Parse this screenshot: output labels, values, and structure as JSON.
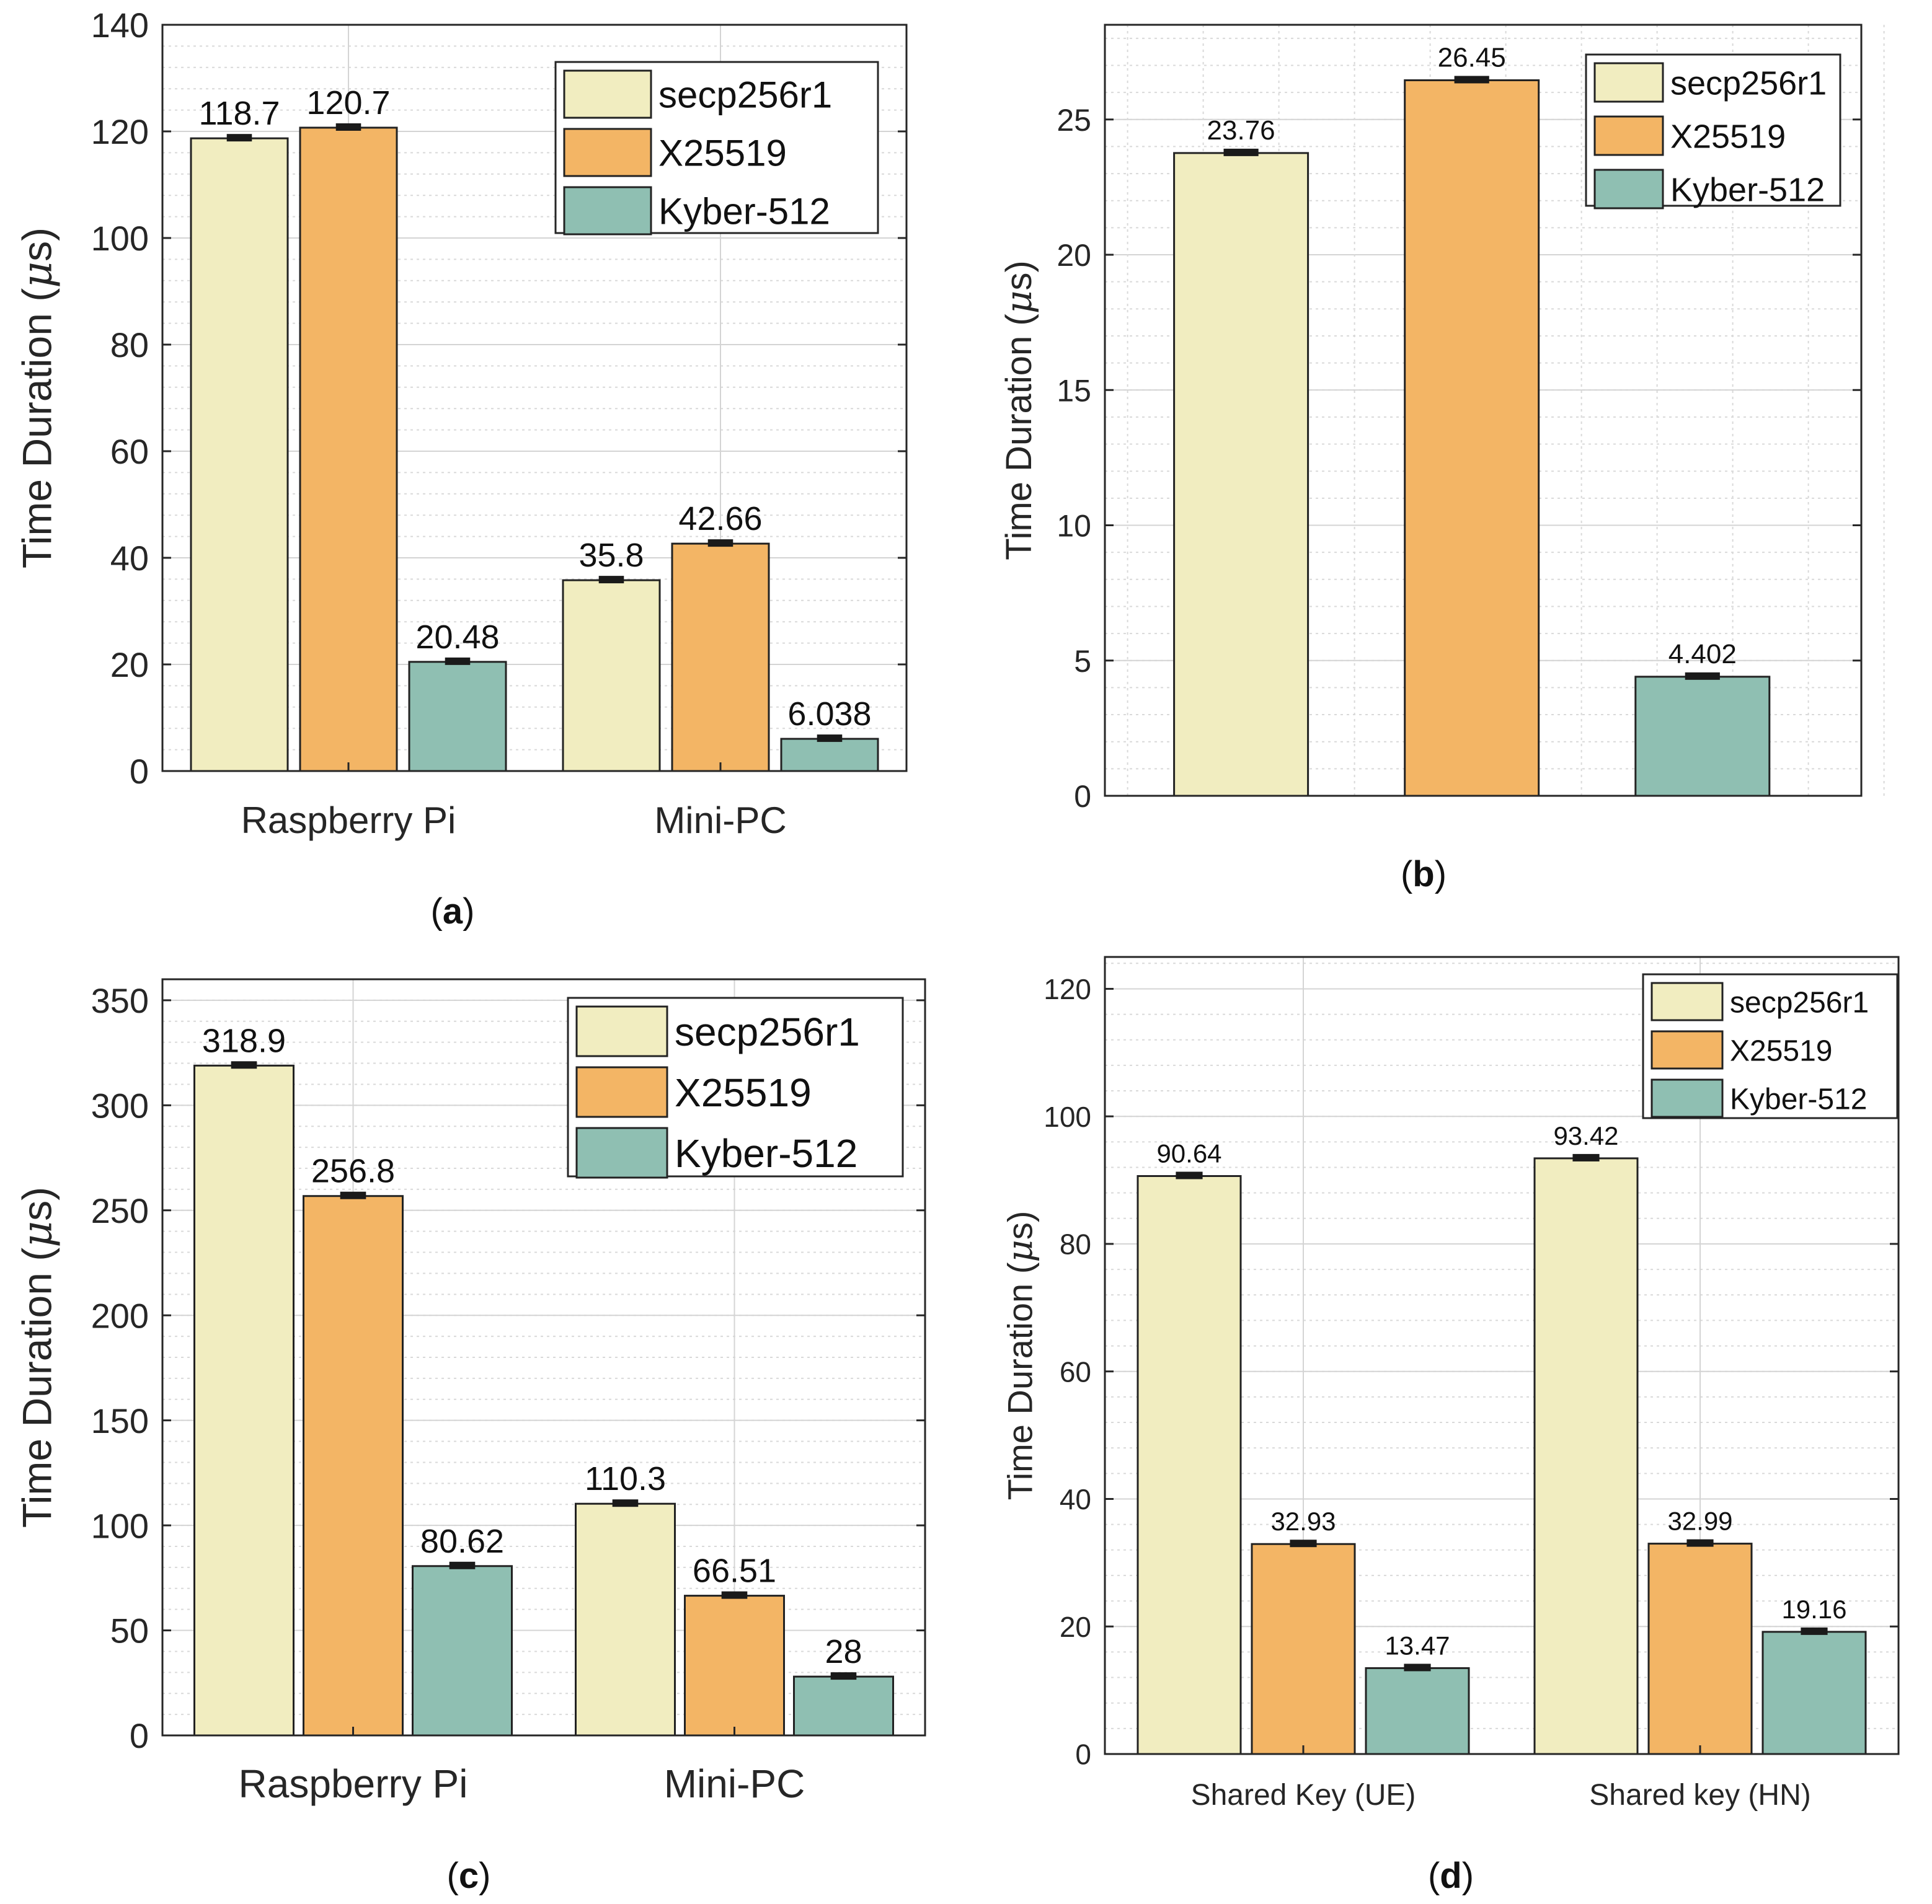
{
  "colors": {
    "secp256r1": "#f1edc0",
    "X25519": "#f3b565",
    "Kyber-512": "#8fbfb2",
    "axis": "#262626",
    "grid_major": "#d4d4d4",
    "grid_minor": "#d9d9d9",
    "errorbar": "#1a1a1a"
  },
  "units": {
    "mu": "μ",
    "s": "s"
  },
  "chart_data": [
    {
      "id": "a",
      "type": "bar",
      "caption": "a",
      "ylabel": "Time Duration (",
      "categories": [
        "Raspberry Pi",
        "Mini-PC"
      ],
      "series": [
        {
          "name": "secp256r1",
          "values": [
            118.7,
            35.8
          ]
        },
        {
          "name": "X25519",
          "values": [
            120.7,
            42.66
          ]
        },
        {
          "name": "Kyber-512",
          "values": [
            20.48,
            6.038
          ]
        }
      ],
      "value_labels": [
        [
          "118.7",
          "35.8"
        ],
        [
          "120.7",
          "42.66"
        ],
        [
          "20.48",
          "6.038"
        ]
      ],
      "ylim": [
        0,
        140
      ],
      "yticks": [
        0,
        20,
        40,
        60,
        80,
        100,
        120,
        140
      ],
      "ytick_labels": [
        "0",
        "20",
        "40",
        "60",
        "80",
        "100",
        "120",
        "140"
      ],
      "legend_location": "top-right",
      "grid": true
    },
    {
      "id": "b",
      "type": "bar",
      "caption": "b",
      "ylabel": "Time Duration (",
      "categories": [
        "",
        "",
        ""
      ],
      "series": [
        {
          "name": "secp256r1",
          "values": [
            23.76,
            null,
            null
          ]
        },
        {
          "name": "X25519",
          "values": [
            null,
            26.45,
            null
          ]
        },
        {
          "name": "Kyber-512",
          "values": [
            null,
            null,
            4.402
          ]
        }
      ],
      "value_labels": [
        [
          "23.76",
          "",
          ""
        ],
        [
          "",
          "26.45",
          ""
        ],
        [
          "",
          "",
          "4.402"
        ]
      ],
      "ylim": [
        0,
        28.5
      ],
      "yticks": [
        0,
        5,
        10,
        15,
        20,
        25
      ],
      "ytick_labels": [
        "0",
        "5",
        "10",
        "15",
        "20",
        "25"
      ],
      "legend_location": "top-right",
      "grid": true
    },
    {
      "id": "c",
      "type": "bar",
      "caption": "c",
      "ylabel": "Time Duration (",
      "categories": [
        "Raspberry Pi",
        "Mini-PC"
      ],
      "series": [
        {
          "name": "secp256r1",
          "values": [
            318.9,
            110.3
          ]
        },
        {
          "name": "X25519",
          "values": [
            256.8,
            66.51
          ]
        },
        {
          "name": "Kyber-512",
          "values": [
            80.62,
            28
          ]
        }
      ],
      "value_labels": [
        [
          "318.9",
          "110.3"
        ],
        [
          "256.8",
          "66.51"
        ],
        [
          "80.62",
          "28"
        ]
      ],
      "ylim": [
        0,
        360
      ],
      "yticks": [
        0,
        50,
        100,
        150,
        200,
        250,
        300,
        350
      ],
      "ytick_labels": [
        "0",
        "50",
        "100",
        "150",
        "200",
        "250",
        "300",
        "350"
      ],
      "legend_location": "top-right",
      "grid": true
    },
    {
      "id": "d",
      "type": "bar",
      "caption": "d",
      "ylabel": "Time Duration (",
      "categories": [
        "Shared Key (UE)",
        "Shared key (HN)"
      ],
      "series": [
        {
          "name": "secp256r1",
          "values": [
            90.64,
            93.42
          ]
        },
        {
          "name": "X25519",
          "values": [
            32.93,
            32.99
          ]
        },
        {
          "name": "Kyber-512",
          "values": [
            13.47,
            19.16
          ]
        }
      ],
      "value_labels": [
        [
          "90.64",
          "93.42"
        ],
        [
          "32.93",
          "32.99"
        ],
        [
          "13.47",
          "19.16"
        ]
      ],
      "ylim": [
        0,
        125
      ],
      "yticks": [
        0,
        20,
        40,
        60,
        80,
        100,
        120
      ],
      "ytick_labels": [
        "0",
        "20",
        "40",
        "60",
        "80",
        "100",
        "120"
      ],
      "legend_location": "top-right",
      "grid": true
    }
  ]
}
